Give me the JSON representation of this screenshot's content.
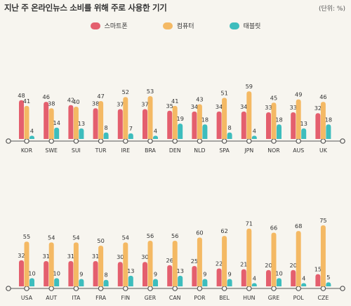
{
  "title": "지난 주 온라인뉴스 소비를 위해 주로 사용한 기기",
  "unit": "(단위: %)",
  "colors": {
    "smartphone": "#e45f6e",
    "computer": "#f4b964",
    "tablet": "#3dbdbd",
    "axis": "#555555"
  },
  "chart_data": {
    "type": "bar",
    "title": "지난 주 온라인뉴스 소비를 위해 주로 사용한 기기",
    "unit": "(단위: %)",
    "legend_position": "top",
    "ylim": [
      0,
      75
    ],
    "series_names": [
      "스마트폰",
      "컴퓨터",
      "태블릿"
    ],
    "panels": [
      {
        "categories": [
          "KOR",
          "SWE",
          "SUI",
          "TUR",
          "IRE",
          "BRA",
          "DEN",
          "NLD",
          "SPA",
          "JPN",
          "NOR",
          "AUS",
          "UK"
        ],
        "series": [
          {
            "name": "스마트폰",
            "values": [
              48,
              46,
              42,
              38,
              37,
              37,
              35,
              34,
              34,
              34,
              33,
              33,
              32
            ]
          },
          {
            "name": "컴퓨터",
            "values": [
              41,
              38,
              40,
              47,
              52,
              53,
              41,
              43,
              51,
              59,
              45,
              49,
              46
            ]
          },
          {
            "name": "태블릿",
            "values": [
              4,
              14,
              13,
              8,
              7,
              4,
              19,
              18,
              8,
              4,
              18,
              13,
              18
            ]
          }
        ]
      },
      {
        "categories": [
          "USA",
          "AUT",
          "ITA",
          "FRA",
          "FIN",
          "GER",
          "CAN",
          "POR",
          "BEL",
          "HUN",
          "GRE",
          "POL",
          "CZE"
        ],
        "series": [
          {
            "name": "스마트폰",
            "values": [
              32,
              31,
              31,
              31,
              30,
              30,
              26,
              25,
              22,
              21,
              20,
              20,
              15
            ]
          },
          {
            "name": "컴퓨터",
            "values": [
              55,
              54,
              54,
              50,
              54,
              56,
              56,
              60,
              62,
              71,
              66,
              68,
              75
            ]
          },
          {
            "name": "태블릿",
            "values": [
              10,
              10,
              9,
              8,
              13,
              9,
              13,
              9,
              9,
              4,
              10,
              4,
              5
            ]
          }
        ]
      }
    ]
  }
}
